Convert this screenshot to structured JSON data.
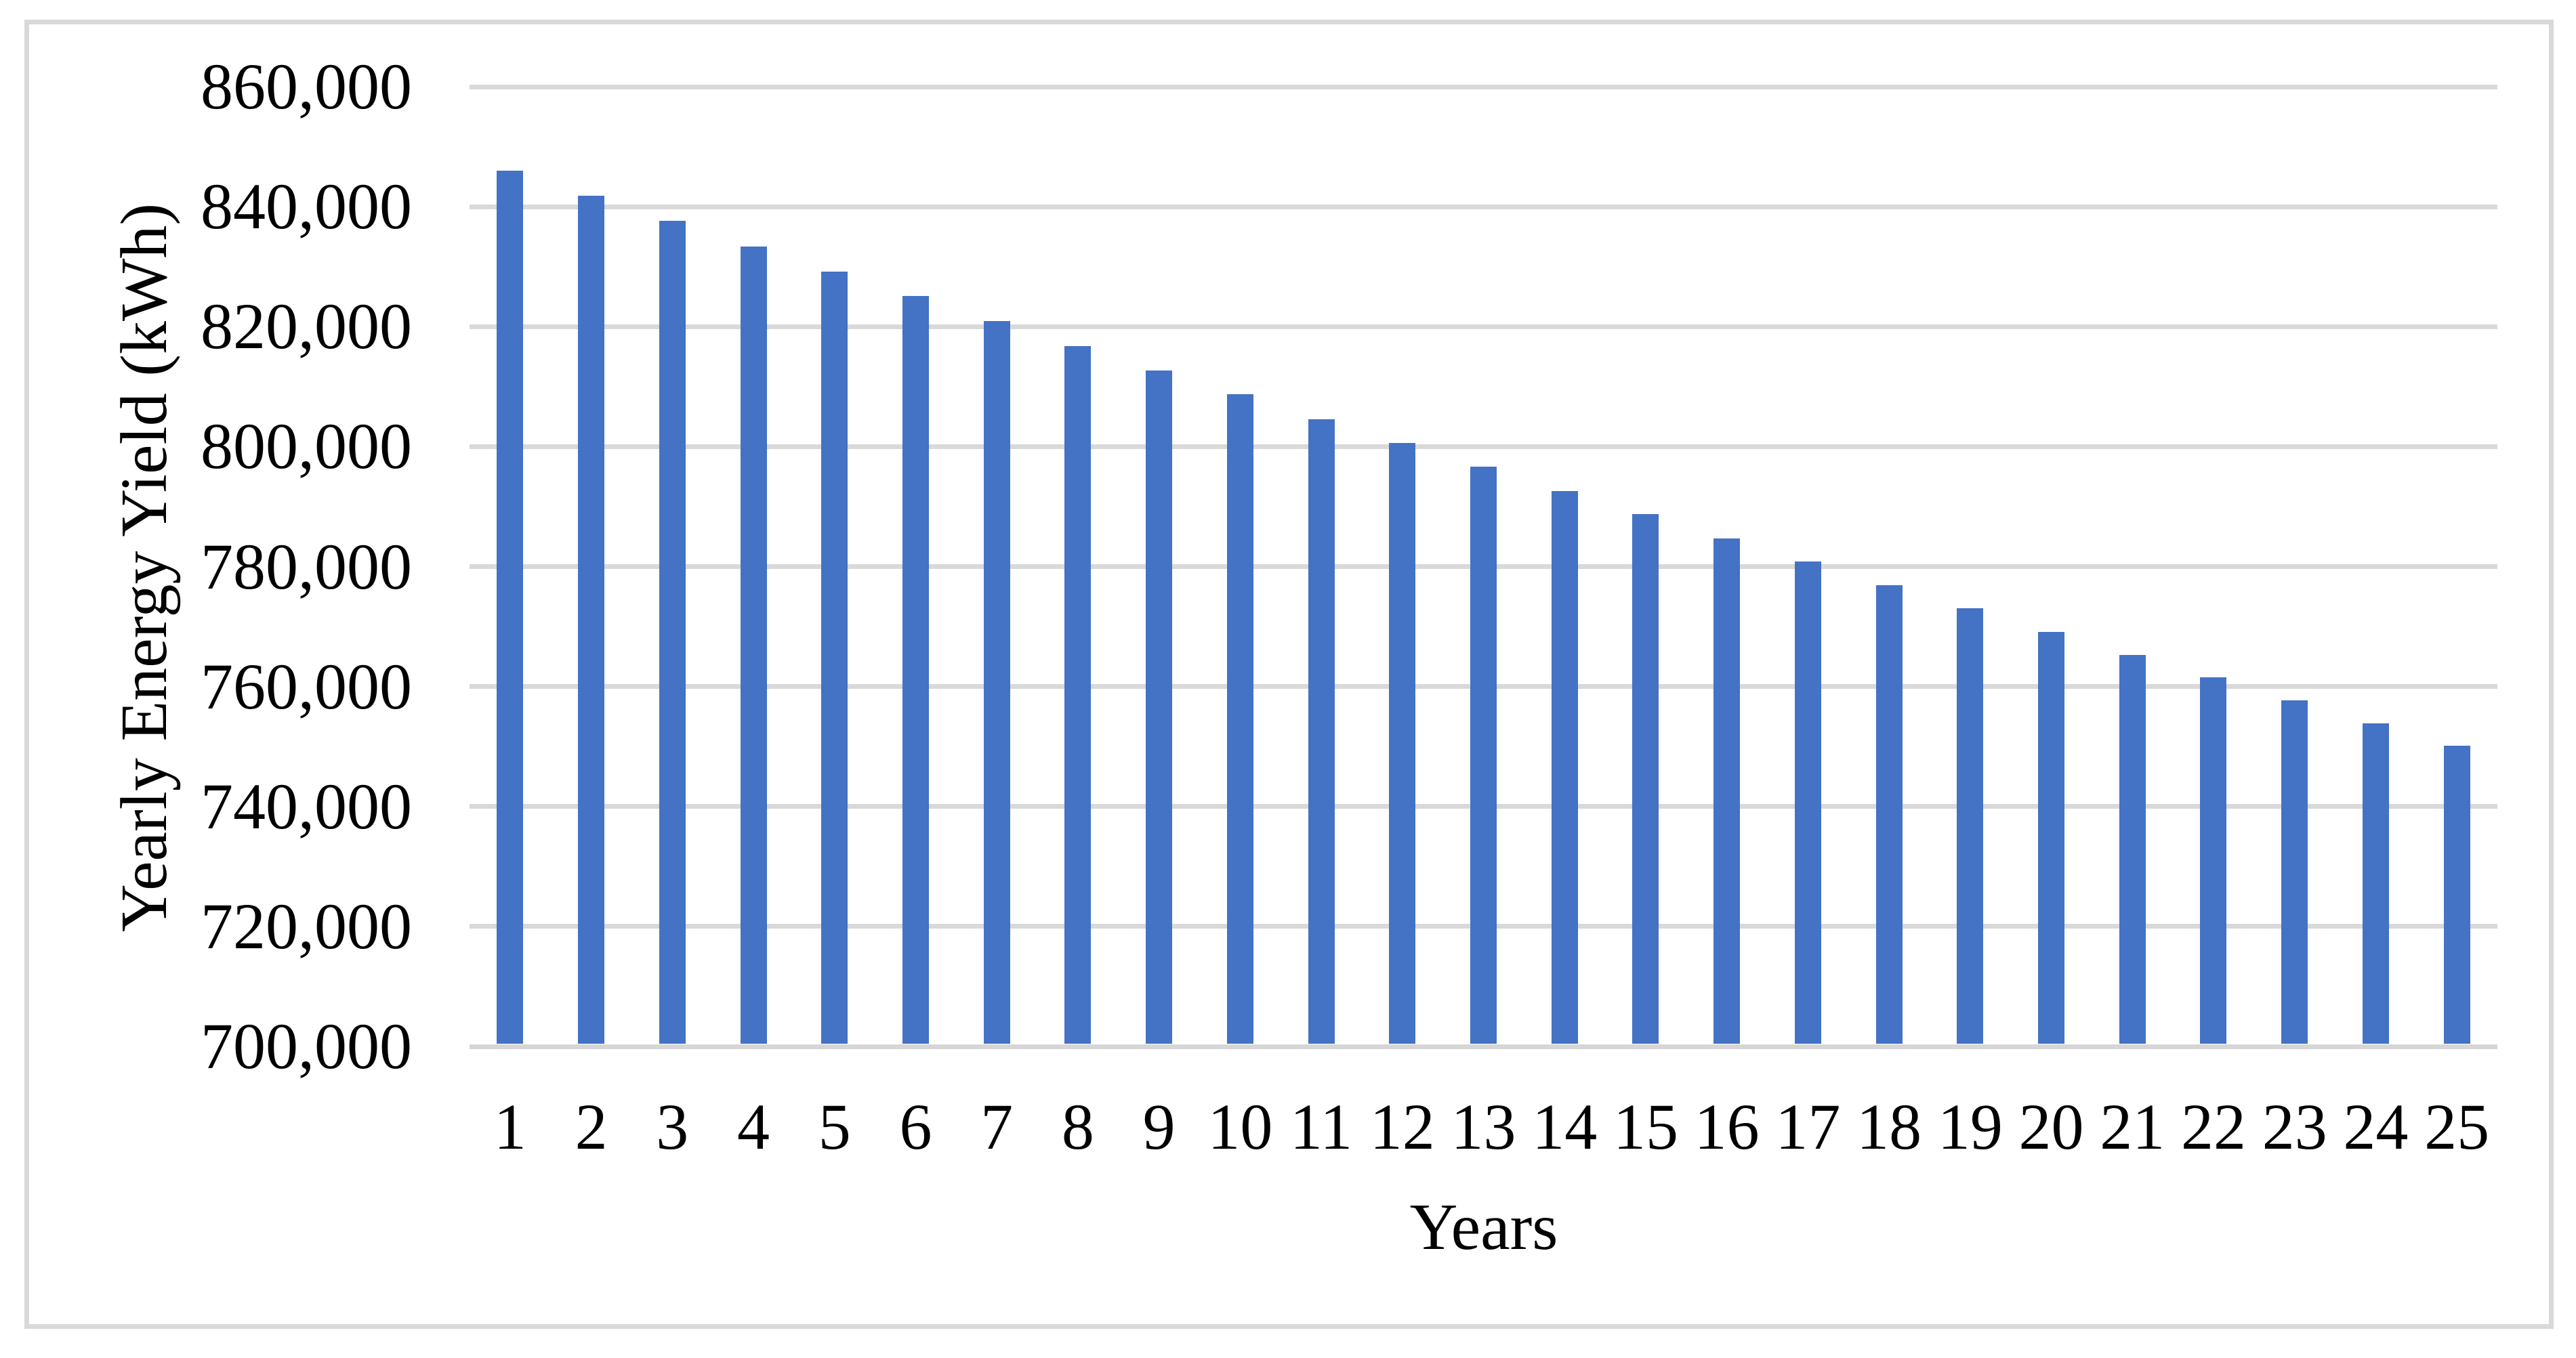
{
  "chart_data": {
    "type": "bar",
    "title": "",
    "xlabel": "Years",
    "ylabel": "Yearly Energy Yield (kWh)",
    "categories": [
      "1",
      "2",
      "3",
      "4",
      "5",
      "6",
      "7",
      "8",
      "9",
      "10",
      "11",
      "12",
      "13",
      "14",
      "15",
      "16",
      "17",
      "18",
      "19",
      "20",
      "21",
      "22",
      "23",
      "24",
      "25"
    ],
    "series": [
      {
        "name": "Yearly Energy Yield (kWh)",
        "values": [
          846000,
          841800,
          837600,
          833400,
          829200,
          825100,
          820900,
          816800,
          812700,
          808700,
          804600,
          800600,
          796600,
          792600,
          788700,
          784700,
          780800,
          776900,
          773000,
          769100,
          765300,
          761500,
          757700,
          753900,
          750100
        ]
      }
    ],
    "ylim": [
      700000,
      860000
    ],
    "ytick_interval": 20000,
    "ytick_labels": [
      "700,000",
      "720,000",
      "740,000",
      "760,000",
      "780,000",
      "800,000",
      "820,000",
      "840,000",
      "860,000"
    ],
    "grid": true,
    "legend": "none",
    "bar_color": "#4472C4",
    "gridline_color": "#D9D9D9",
    "axis_line_color": "#D6D6D6",
    "frame_border_color": "#D9D9D9",
    "text_color": "#000000"
  }
}
